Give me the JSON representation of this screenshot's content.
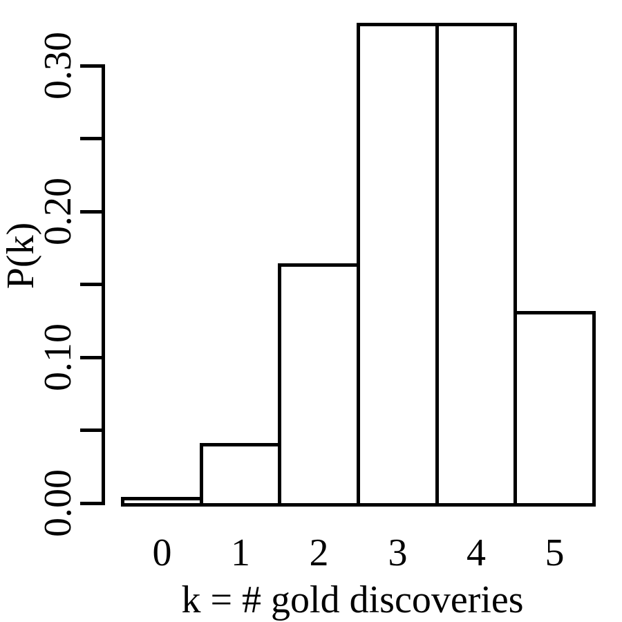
{
  "figure": {
    "background_color": "#ffffff",
    "stroke_color": "#000000",
    "bar_fill_color": "#ffffff"
  },
  "chart_data": {
    "type": "bar",
    "style": "histogram_touching_bars",
    "title": "",
    "xlabel": "k = # gold discoveries",
    "ylabel": "P(k)",
    "categories": [
      "0",
      "1",
      "2",
      "3",
      "4",
      "5"
    ],
    "values": [
      0.0041,
      0.0412,
      0.1646,
      0.3292,
      0.3292,
      0.1317
    ],
    "ylim": [
      0,
      0.333
    ],
    "y_ticks": [
      0.0,
      0.05,
      0.1,
      0.15,
      0.2,
      0.25,
      0.3
    ],
    "y_tick_labels": [
      {
        "value": 0.0,
        "label": "0.00"
      },
      {
        "value": 0.1,
        "label": "0.10"
      },
      {
        "value": 0.2,
        "label": "0.20"
      },
      {
        "value": 0.3,
        "label": "0.30"
      }
    ],
    "grid": false,
    "legend": null
  }
}
